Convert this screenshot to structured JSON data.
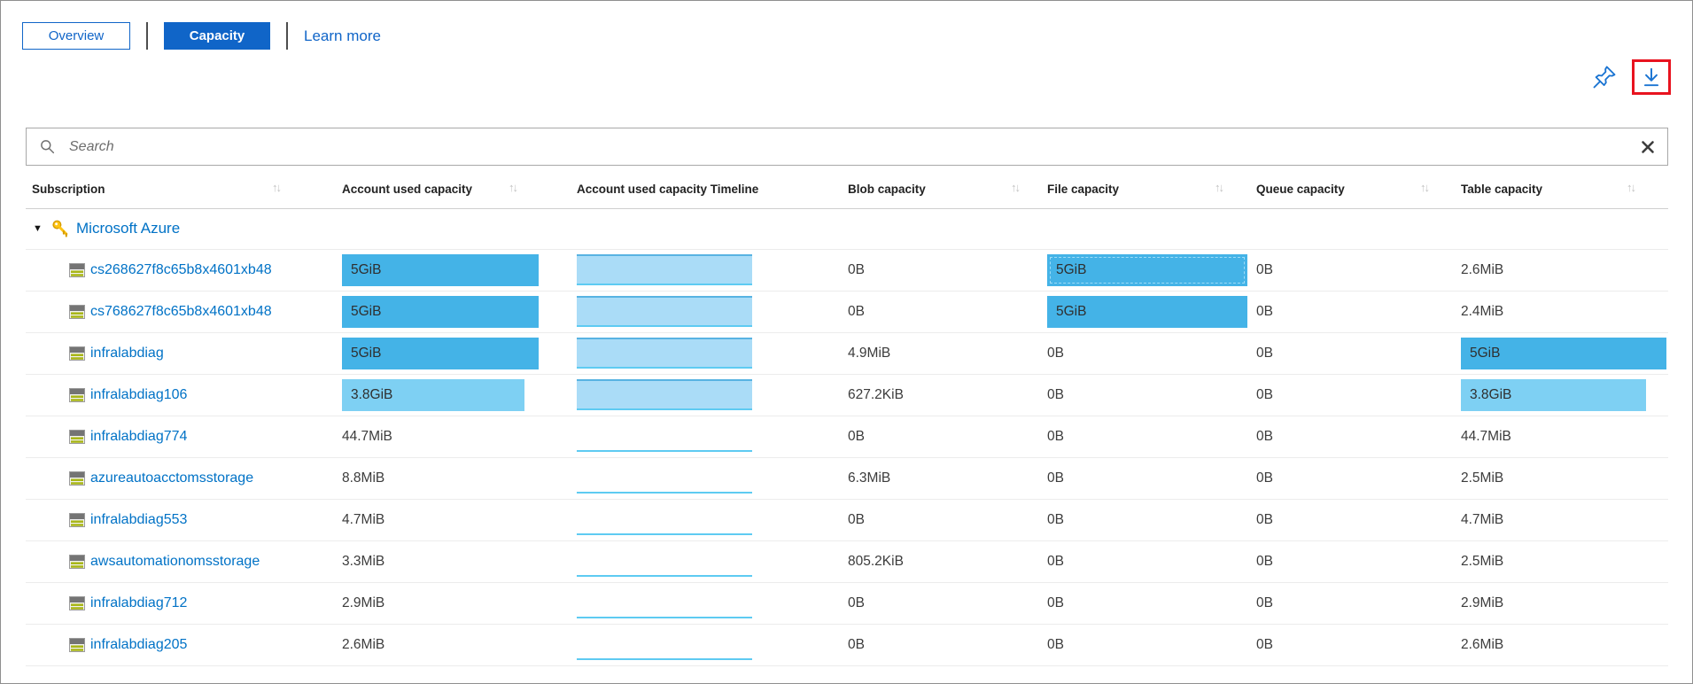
{
  "tabs": [
    {
      "label": "Overview",
      "active": false
    },
    {
      "label": "Capacity",
      "active": true
    }
  ],
  "learn_more_label": "Learn more",
  "toolbar": {
    "pin_icon": "pin",
    "download_icon": "download",
    "download_highlighted": true
  },
  "search": {
    "placeholder": "Search"
  },
  "glyphs": {
    "sort": "↑↓",
    "group_caret": "▼"
  },
  "grid": {
    "columns": [
      {
        "label": "Subscription",
        "sortable": true
      },
      {
        "label": "Account used capacity",
        "sortable": true
      },
      {
        "label": "Account used capacity Timeline",
        "sortable": false
      },
      {
        "label": "Blob capacity",
        "sortable": true
      },
      {
        "label": "File capacity",
        "sortable": true
      },
      {
        "label": "Queue capacity",
        "sortable": true
      },
      {
        "label": "Table capacity",
        "sortable": true
      }
    ],
    "group": {
      "label": "Microsoft Azure",
      "expanded": true
    },
    "rows": [
      {
        "name": "cs268627f8c65b8x4601xb48",
        "used": {
          "text": "5GiB",
          "bar": "dark",
          "width": 1.0
        },
        "timeline": "filled",
        "blob": {
          "text": "0B"
        },
        "file": {
          "text": "5GiB",
          "bar": "dark",
          "width": 1.0,
          "focused": true
        },
        "queue": {
          "text": "0B"
        },
        "table": {
          "text": "2.6MiB"
        }
      },
      {
        "name": "cs768627f8c65b8x4601xb48",
        "used": {
          "text": "5GiB",
          "bar": "dark",
          "width": 1.0
        },
        "timeline": "filled",
        "blob": {
          "text": "0B"
        },
        "file": {
          "text": "5GiB",
          "bar": "dark",
          "width": 1.0
        },
        "queue": {
          "text": "0B"
        },
        "table": {
          "text": "2.4MiB"
        }
      },
      {
        "name": "infralabdiag",
        "used": {
          "text": "5GiB",
          "bar": "dark",
          "width": 1.0
        },
        "timeline": "filled",
        "blob": {
          "text": "4.9MiB"
        },
        "file": {
          "text": "0B"
        },
        "queue": {
          "text": "0B"
        },
        "table": {
          "text": "5GiB",
          "bar": "dark",
          "width": 1.0
        }
      },
      {
        "name": "infralabdiag106",
        "used": {
          "text": "3.8GiB",
          "bar": "light",
          "width": 0.93
        },
        "timeline": "filled",
        "blob": {
          "text": "627.2KiB"
        },
        "file": {
          "text": "0B"
        },
        "queue": {
          "text": "0B"
        },
        "table": {
          "text": "3.8GiB",
          "bar": "light",
          "width": 0.9
        }
      },
      {
        "name": "infralabdiag774",
        "used": {
          "text": "44.7MiB"
        },
        "timeline": "line",
        "blob": {
          "text": "0B"
        },
        "file": {
          "text": "0B"
        },
        "queue": {
          "text": "0B"
        },
        "table": {
          "text": "44.7MiB"
        }
      },
      {
        "name": "azureautoacctomsstorage",
        "used": {
          "text": "8.8MiB"
        },
        "timeline": "line",
        "blob": {
          "text": "6.3MiB"
        },
        "file": {
          "text": "0B"
        },
        "queue": {
          "text": "0B"
        },
        "table": {
          "text": "2.5MiB"
        }
      },
      {
        "name": "infralabdiag553",
        "used": {
          "text": "4.7MiB"
        },
        "timeline": "line",
        "blob": {
          "text": "0B"
        },
        "file": {
          "text": "0B"
        },
        "queue": {
          "text": "0B"
        },
        "table": {
          "text": "4.7MiB"
        }
      },
      {
        "name": "awsautomationomsstorage",
        "used": {
          "text": "3.3MiB"
        },
        "timeline": "line",
        "blob": {
          "text": "805.2KiB"
        },
        "file": {
          "text": "0B"
        },
        "queue": {
          "text": "0B"
        },
        "table": {
          "text": "2.5MiB"
        }
      },
      {
        "name": "infralabdiag712",
        "used": {
          "text": "2.9MiB"
        },
        "timeline": "line",
        "blob": {
          "text": "0B"
        },
        "file": {
          "text": "0B"
        },
        "queue": {
          "text": "0B"
        },
        "table": {
          "text": "2.9MiB"
        }
      },
      {
        "name": "infralabdiag205",
        "used": {
          "text": "2.6MiB"
        },
        "timeline": "line",
        "blob": {
          "text": "0B"
        },
        "file": {
          "text": "0B"
        },
        "queue": {
          "text": "0B"
        },
        "table": {
          "text": "2.6MiB"
        }
      }
    ]
  },
  "colors": {
    "accent_blue": "#0072c6",
    "button_fill": "#1065c8",
    "bar_dark": "#44b3e7",
    "bar_light": "#7ed0f3",
    "timeline_fill": "#aadcf7",
    "timeline_line": "#5ecbf2",
    "highlight_red": "#e8131f"
  }
}
